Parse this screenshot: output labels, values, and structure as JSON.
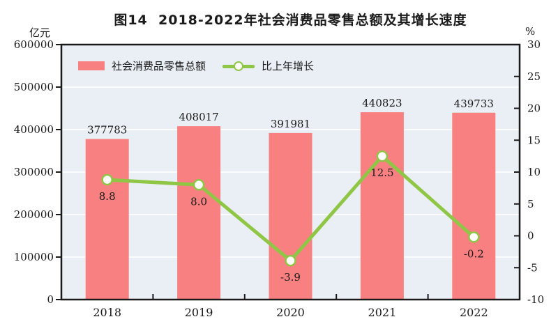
{
  "chart_data": {
    "type": "combo",
    "title": "图14  2018-2022年社会消费品零售总额及其增长速度",
    "categories": [
      "2018",
      "2019",
      "2020",
      "2021",
      "2022"
    ],
    "series": [
      {
        "name": "社会消费品零售总额",
        "type": "bar",
        "axis": "left",
        "color": "#f98080",
        "values": [
          377783,
          408017,
          391981,
          440823,
          439733
        ],
        "labels": [
          "377783",
          "408017",
          "391981",
          "440823",
          "439733"
        ]
      },
      {
        "name": "比上年增长",
        "type": "line",
        "axis": "right",
        "color": "#8fc645",
        "marker_fill": "#ffffff",
        "values": [
          8.8,
          8.0,
          -3.9,
          12.5,
          -0.2
        ],
        "labels": [
          "8.8",
          "8.0",
          "-3.9",
          "12.5",
          "-0.2"
        ]
      }
    ],
    "axes": {
      "left": {
        "unit": "亿元",
        "min": 0,
        "max": 600000,
        "step": 100000,
        "tick_labels": [
          "0",
          "100000",
          "200000",
          "300000",
          "400000",
          "500000",
          "600000"
        ]
      },
      "right": {
        "unit": "%",
        "min": -10,
        "max": 30,
        "step": 5,
        "tick_labels": [
          "-10",
          "-5",
          "0",
          "5",
          "10",
          "15",
          "20",
          "25",
          "30"
        ]
      }
    },
    "style": {
      "plot_bg": "#e9eff4",
      "grid_color": "#fafcfd",
      "axis_color": "#1a1a1a",
      "text_color": "#1a1a1a"
    },
    "grid": "horizontal",
    "legend_position": "inside-top-left"
  }
}
